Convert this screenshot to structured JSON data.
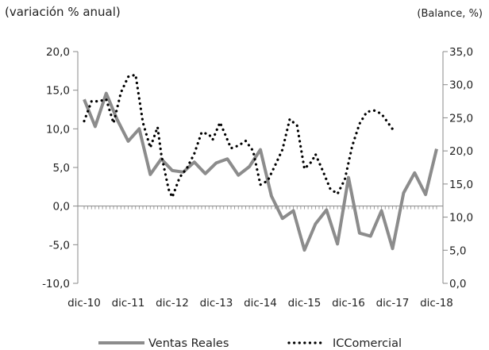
{
  "chart_data": {
    "type": "line",
    "left_axis_label": "(variación % anual)",
    "right_axis_label": "(Balance, %)",
    "x_tick_labels": [
      "dic-10",
      "dic-11",
      "dic-12",
      "dic-13",
      "dic-14",
      "dic-15",
      "dic-16",
      "dic-17",
      "dic-18"
    ],
    "y_left_ticks": [
      "20,0",
      "15,0",
      "10,0",
      "5,0",
      "0,0",
      "-5,0",
      "-10,0"
    ],
    "y_right_ticks": [
      "35,0",
      "30,0",
      "25,0",
      "20,0",
      "15,0",
      "10,0",
      "5,0",
      "0,0"
    ],
    "ylim_left": [
      -10,
      20
    ],
    "ylim_right": [
      0,
      35
    ],
    "x_period_months": 96,
    "grid": false,
    "legend_position": "bottom",
    "series": [
      {
        "name": "Ventas Reales",
        "axis": "left",
        "style": "solid",
        "color": "#8c8c8c",
        "points": [
          [
            0,
            13.8
          ],
          [
            3,
            10.3
          ],
          [
            6,
            14.6
          ],
          [
            9,
            11.2
          ],
          [
            12,
            8.4
          ],
          [
            15,
            10.0
          ],
          [
            18,
            4.1
          ],
          [
            21,
            6.1
          ],
          [
            24,
            4.6
          ],
          [
            27,
            4.4
          ],
          [
            30,
            5.7
          ],
          [
            33,
            4.2
          ],
          [
            36,
            5.6
          ],
          [
            39,
            6.1
          ],
          [
            42,
            4.0
          ],
          [
            45,
            5.1
          ],
          [
            48,
            7.3
          ],
          [
            51,
            1.3
          ],
          [
            54,
            -1.6
          ],
          [
            57,
            -0.6
          ],
          [
            60,
            -5.7
          ],
          [
            63,
            -2.3
          ],
          [
            66,
            -0.5
          ],
          [
            69,
            -4.9
          ],
          [
            72,
            3.7
          ],
          [
            75,
            -3.5
          ],
          [
            78,
            -3.9
          ],
          [
            81,
            -0.6
          ],
          [
            84,
            -5.5
          ],
          [
            87,
            1.7
          ],
          [
            90,
            4.3
          ],
          [
            93,
            1.5
          ],
          [
            96,
            7.4
          ]
        ]
      },
      {
        "name": "ICComercial",
        "axis": "right",
        "style": "dotted",
        "color": "#000000",
        "points": [
          [
            0,
            24.5
          ],
          [
            2,
            27.5
          ],
          [
            4,
            27.5
          ],
          [
            6,
            27.8
          ],
          [
            8,
            24.2
          ],
          [
            10,
            28.8
          ],
          [
            12,
            31.2
          ],
          [
            14,
            31.5
          ],
          [
            16,
            24.3
          ],
          [
            18,
            20.5
          ],
          [
            20,
            23.6
          ],
          [
            21,
            19.5
          ],
          [
            23,
            14.2
          ],
          [
            24,
            13.0
          ],
          [
            26,
            16.0
          ],
          [
            28,
            17.4
          ],
          [
            30,
            19.6
          ],
          [
            32,
            22.8
          ],
          [
            34,
            22.5
          ],
          [
            35,
            21.7
          ],
          [
            37,
            24.3
          ],
          [
            38,
            23.0
          ],
          [
            40,
            20.4
          ],
          [
            42,
            20.8
          ],
          [
            44,
            21.5
          ],
          [
            46,
            20.0
          ],
          [
            48,
            14.9
          ],
          [
            50,
            15.5
          ],
          [
            52,
            17.8
          ],
          [
            54,
            20.2
          ],
          [
            56,
            24.8
          ],
          [
            58,
            23.8
          ],
          [
            60,
            17.3
          ],
          [
            62,
            18.4
          ],
          [
            63,
            19.5
          ],
          [
            65,
            17.0
          ],
          [
            67,
            14.3
          ],
          [
            69,
            13.5
          ],
          [
            71,
            15.7
          ],
          [
            73,
            20.7
          ],
          [
            75,
            24.1
          ],
          [
            77,
            25.9
          ],
          [
            79,
            26.1
          ],
          [
            81,
            25.6
          ],
          [
            84,
            23.3
          ]
        ]
      }
    ]
  }
}
